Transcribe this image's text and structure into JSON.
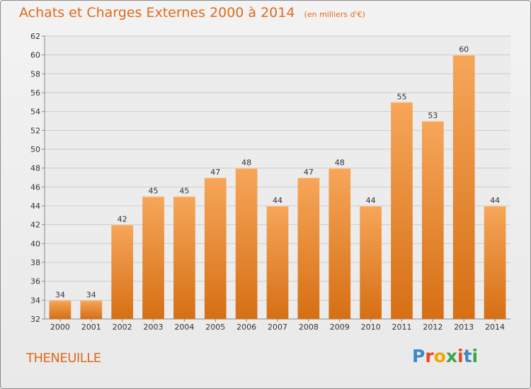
{
  "chart_data": {
    "type": "bar",
    "title": "Achats et Charges Externes 2000 à 2014",
    "subtitle": "(en milliers d'€)",
    "categories": [
      "2000",
      "2001",
      "2002",
      "2003",
      "2004",
      "2005",
      "2006",
      "2007",
      "2008",
      "2009",
      "2010",
      "2011",
      "2012",
      "2013",
      "2014"
    ],
    "values": [
      34,
      34,
      42,
      45,
      45,
      47,
      48,
      44,
      47,
      48,
      44,
      55,
      53,
      60,
      44
    ],
    "ylim": [
      32,
      62
    ],
    "yticks": [
      32,
      34,
      36,
      38,
      40,
      42,
      44,
      46,
      48,
      50,
      52,
      54,
      56,
      58,
      60,
      62
    ],
    "grid": true,
    "bar_color": "#f08a2e",
    "xlabel": "",
    "ylabel": ""
  },
  "commune": "THENEUILLE",
  "logo": {
    "text": "Proxiti",
    "colors": [
      "#3f87c9",
      "#e8481f",
      "#f2a500",
      "#3aa54a",
      "#e8481f",
      "#3f87c9",
      "#3aa54a"
    ]
  }
}
